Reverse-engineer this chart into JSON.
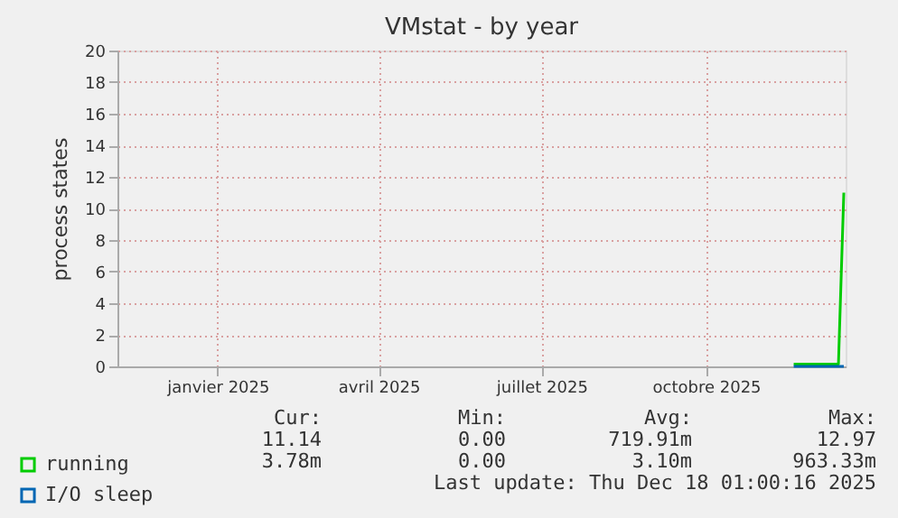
{
  "chart_data": {
    "type": "line",
    "title": "VMstat - by year",
    "ylabel": "process states",
    "x": [
      "2025-11-19",
      "2025-12-14",
      "2025-12-17"
    ],
    "series": [
      {
        "name": "running",
        "color": "#00cc00",
        "values": [
          0.15,
          0.15,
          11
        ]
      },
      {
        "name": "I/O sleep",
        "color": "#0066b3",
        "values": [
          0,
          0,
          0
        ]
      }
    ],
    "xlim": [
      "2024-11-06",
      "2025-12-18"
    ],
    "xticks": [
      {
        "value": "2025-01-01",
        "label": "janvier 2025"
      },
      {
        "value": "2025-04-01",
        "label": "avril 2025"
      },
      {
        "value": "2025-07-01",
        "label": "juillet 2025"
      },
      {
        "value": "2025-10-01",
        "label": "octobre 2025"
      }
    ],
    "ylim": [
      0,
      20
    ],
    "yticks": [
      0,
      2,
      4,
      6,
      8,
      10,
      12,
      14,
      16,
      18,
      20
    ],
    "grid": true,
    "legend": "bottom left",
    "marker": "none",
    "line_style": "solid",
    "annotations": [
      "Cur:",
      "Min:",
      "Avg:",
      "Max:",
      "11.14",
      "0.00",
      "719.91m",
      "12.97",
      "3.78m",
      "0.00",
      "3.10m",
      "963.33m",
      "Last update: Thu Dec 18 01:00:16 2025"
    ]
  }
}
